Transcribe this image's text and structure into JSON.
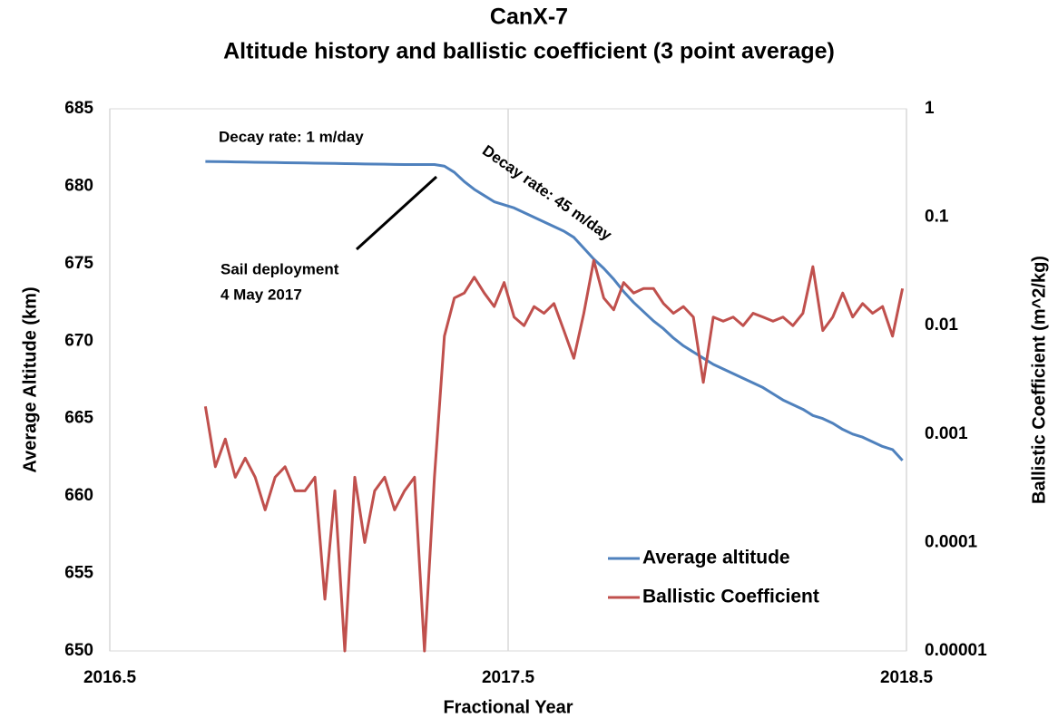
{
  "chart_data": {
    "type": "line",
    "title": "CanX-7",
    "subtitle": "Altitude history and ballistic coefficient (3 point average)",
    "xlabel": "Fractional Year",
    "ylabel": "Average Altitude (km)",
    "y2label": "Ballistic Coefficient (m^2/kg)",
    "xlim": [
      2016.5,
      2018.5
    ],
    "xticks": [
      2016.5,
      2017.5,
      2018.5
    ],
    "ylim": [
      650,
      685
    ],
    "yticks": [
      650,
      655,
      660,
      665,
      670,
      675,
      680,
      685
    ],
    "y2lim": [
      1e-05,
      1
    ],
    "y2ticks": [
      1e-05,
      0.0001,
      0.001,
      0.01,
      0.1,
      1
    ],
    "y2scale": "log",
    "grid": "x",
    "legend": "lower right",
    "annotations": [
      "Decay rate: 1 m/day",
      "Decay rate: 45 m/day",
      "Sail deployment",
      "4 May 2017"
    ],
    "x": [
      2016.74,
      2016.765,
      2016.79,
      2016.815,
      2016.84,
      2016.865,
      2016.89,
      2016.915,
      2016.94,
      2016.965,
      2016.99,
      2017.015,
      2017.04,
      2017.065,
      2017.09,
      2017.115,
      2017.14,
      2017.165,
      2017.19,
      2017.215,
      2017.24,
      2017.265,
      2017.29,
      2017.315,
      2017.34,
      2017.365,
      2017.39,
      2017.415,
      2017.44,
      2017.465,
      2017.49,
      2017.515,
      2017.54,
      2017.565,
      2017.59,
      2017.615,
      2017.64,
      2017.665,
      2017.69,
      2017.715,
      2017.74,
      2017.765,
      2017.79,
      2017.815,
      2017.84,
      2017.865,
      2017.89,
      2017.915,
      2017.94,
      2017.965,
      2017.99,
      2018.015,
      2018.04,
      2018.065,
      2018.09,
      2018.115,
      2018.14,
      2018.165,
      2018.19,
      2018.215,
      2018.24,
      2018.265,
      2018.29,
      2018.315,
      2018.34,
      2018.365,
      2018.39,
      2018.415,
      2018.44,
      2018.465,
      2018.49
    ],
    "series": [
      {
        "name": "Average altitude",
        "color": "#4f81bd",
        "axis": "y",
        "values": [
          681.6,
          681.59,
          681.58,
          681.57,
          681.56,
          681.55,
          681.54,
          681.53,
          681.52,
          681.51,
          681.5,
          681.49,
          681.48,
          681.47,
          681.46,
          681.45,
          681.44,
          681.43,
          681.42,
          681.41,
          681.4,
          681.4,
          681.4,
          681.4,
          681.3,
          680.9,
          680.3,
          679.8,
          679.4,
          679,
          678.8,
          678.6,
          678.3,
          678,
          677.7,
          677.4,
          677.1,
          676.7,
          676,
          675.3,
          674.7,
          674,
          673.2,
          672.5,
          671.9,
          671.3,
          670.8,
          670.2,
          669.7,
          669.3,
          668.9,
          668.5,
          668.2,
          667.9,
          667.6,
          667.3,
          667,
          666.6,
          666.2,
          665.9,
          665.6,
          665.2,
          665,
          664.7,
          664.3,
          664,
          663.8,
          663.5,
          663.2,
          663,
          662.3
        ]
      },
      {
        "name": "Ballistic Coefficient",
        "color": "#c0504d",
        "axis": "y2",
        "values": [
          0.0018,
          0.0005,
          0.0009,
          0.0004,
          0.0006,
          0.0004,
          0.0002,
          0.0004,
          0.0005,
          0.0003,
          0.0003,
          0.0004,
          3e-05,
          0.0003,
          1e-05,
          0.0004,
          0.0001,
          0.0003,
          0.0004,
          0.0002,
          0.0003,
          0.0004,
          1e-05,
          0.0004,
          0.008,
          0.018,
          0.02,
          0.028,
          0.02,
          0.015,
          0.025,
          0.012,
          0.01,
          0.015,
          0.013,
          0.016,
          0.009,
          0.005,
          0.013,
          0.04,
          0.018,
          0.014,
          0.025,
          0.02,
          0.022,
          0.022,
          0.016,
          0.013,
          0.015,
          0.012,
          0.003,
          0.012,
          0.011,
          0.012,
          0.01,
          0.013,
          0.012,
          0.011,
          0.012,
          0.01,
          0.013,
          0.035,
          0.009,
          0.012,
          0.02,
          0.012,
          0.016,
          0.013,
          0.015,
          0.008,
          0.022
        ]
      }
    ]
  }
}
